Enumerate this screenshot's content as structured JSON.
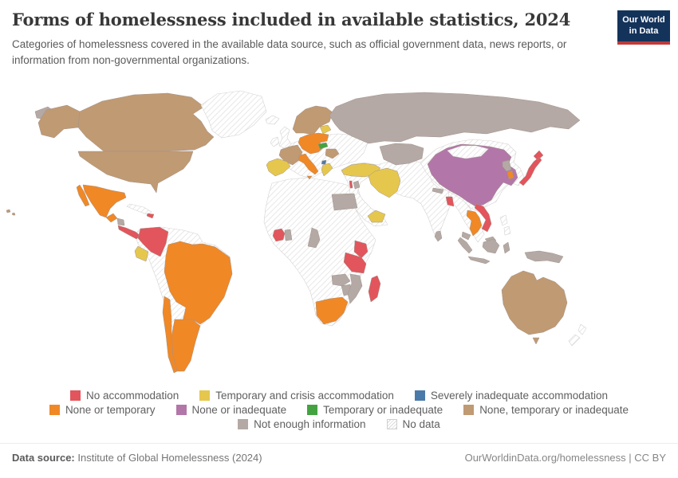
{
  "header": {
    "title": "Forms of homelessness included in available statistics, 2024",
    "subtitle": "Categories of homelessness covered in the available data source, such as official government data, news reports, or information from non-governmental organizations."
  },
  "logo": {
    "line1": "Our World",
    "line2": "in Data",
    "bg_color": "#14335b",
    "accent_color": "#bf3a3a"
  },
  "chart_data": {
    "type": "choropleth",
    "title": "Forms of homelessness included in available statistics, 2024",
    "legend_position": "bottom",
    "categories": {
      "no_accommodation": {
        "label": "No accommodation",
        "color": "#e2555c"
      },
      "temporary_crisis": {
        "label": "Temporary and crisis accommodation",
        "color": "#e6c74d"
      },
      "severely_inadequate": {
        "label": "Severely inadequate accommodation",
        "color": "#4a7aa9"
      },
      "none_or_temporary": {
        "label": "None or temporary",
        "color": "#f08826"
      },
      "none_or_inadequate": {
        "label": "None or inadequate",
        "color": "#b277a8"
      },
      "temporary_or_inadequate": {
        "label": "Temporary or inadequate",
        "color": "#44a340"
      },
      "none_temporary_or_inadequate": {
        "label": "None, temporary or inadequate",
        "color": "#c09a73"
      },
      "not_enough_information": {
        "label": "Not enough information",
        "color": "#b4a9a4"
      },
      "no_data": {
        "label": "No data",
        "color": "hatch"
      }
    },
    "legend_rows": [
      [
        "no_accommodation",
        "temporary_crisis",
        "severely_inadequate"
      ],
      [
        "none_or_temporary",
        "none_or_inadequate",
        "temporary_or_inadequate",
        "none_temporary_or_inadequate"
      ],
      [
        "not_enough_information",
        "no_data"
      ]
    ],
    "regions": {
      "chukotka": "not_enough_information",
      "alaska": "none_temporary_or_inadequate",
      "canada": "none_temporary_or_inadequate",
      "usa": "none_temporary_or_inadequate",
      "hawaii": "none_temporary_or_inadequate",
      "greenland": "no_data",
      "iceland": "no_data",
      "mexico": "none_or_temporary",
      "guatemala": "none_or_temporary",
      "nicaragua": "not_enough_information",
      "costa_rica_panama": "no_accommodation",
      "cuba": "no_data",
      "haiti_dominican_republic": "no_accommodation",
      "south_america_other": "no_data",
      "colombia": "no_accommodation",
      "ecuador": "temporary_crisis",
      "brazil": "none_or_temporary",
      "argentina": "none_or_temporary",
      "chile": "none_or_temporary",
      "europe_other": "no_data",
      "uk": "no_data",
      "ireland": "no_data",
      "scandinavia": "none_temporary_or_inadequate",
      "baltics": "temporary_crisis",
      "france": "none_temporary_or_inadequate",
      "iberia": "temporary_crisis",
      "central_europe": "none_or_temporary",
      "slovakia": "temporary_or_inadequate",
      "italy": "none_or_temporary",
      "romania": "none_temporary_or_inadequate",
      "greece": "temporary_crisis",
      "north_macedonia": "severely_inadequate",
      "russia": "not_enough_information",
      "kazakhstan": "not_enough_information",
      "middle_east_other": "no_data",
      "south_asia_other": "no_data",
      "southeast_asia_other": "no_data",
      "east_asia_other": "no_data",
      "philippines": "no_data",
      "turkey": "temporary_crisis",
      "iran": "temporary_crisis",
      "israel": "no_accommodation",
      "jordan": "not_enough_information",
      "egypt": "not_enough_information",
      "yemen": "temporary_crisis",
      "china": "none_or_inadequate",
      "mongolia": "no_data",
      "nepal": "not_enough_information",
      "bangladesh": "no_accommodation",
      "sri_lanka": "not_enough_information",
      "thailand": "none_or_temporary",
      "vietnam": "no_accommodation",
      "north_korea": "not_enough_information",
      "south_korea": "none_or_temporary",
      "japan": "no_accommodation",
      "malaysia": "not_enough_information",
      "indonesia": "not_enough_information",
      "papua_new_guinea": "not_enough_information",
      "australia": "none_temporary_or_inadequate",
      "tasmania": "none_temporary_or_inadequate",
      "new_zealand": "no_data",
      "africa_other": "no_data",
      "ivory_coast": "no_accommodation",
      "ghana": "not_enough_information",
      "cameroon": "not_enough_information",
      "kenya": "no_accommodation",
      "tanzania": "no_accommodation",
      "zambia": "not_enough_information",
      "zimbabwe": "not_enough_information",
      "mozambique": "not_enough_information",
      "madagascar": "no_accommodation",
      "south_africa": "none_or_temporary"
    }
  },
  "footer": {
    "source_label": "Data source:",
    "source_text": "Institute of Global Homelessness (2024)",
    "credit": "OurWorldinData.org/homelessness | CC BY"
  }
}
